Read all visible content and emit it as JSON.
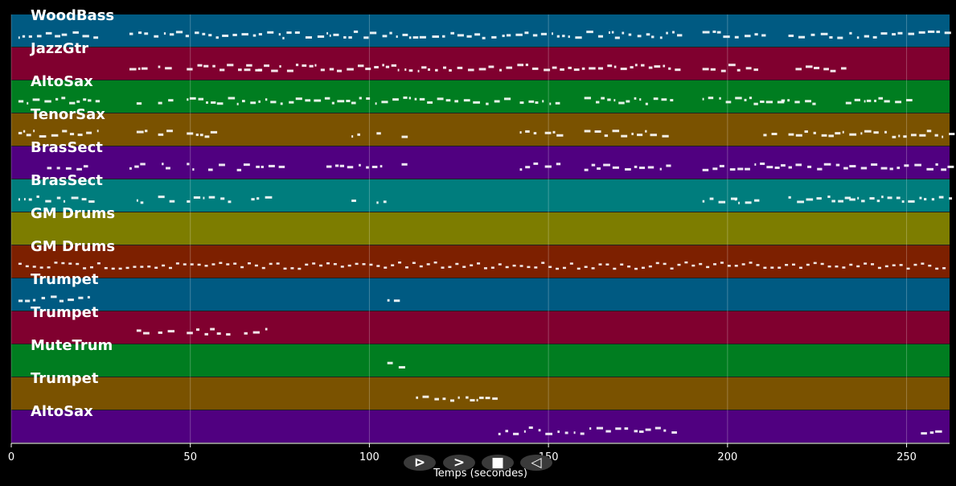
{
  "chart_data": {
    "type": "piano-roll",
    "xlabel": "Temps (secondes)",
    "xlim": [
      0,
      262
    ],
    "xticks": [
      0,
      50,
      100,
      150,
      200,
      250
    ],
    "grid": true,
    "tracks": [
      {
        "name": "WoodBass",
        "color": "#005a82",
        "segments": [
          [
            2,
            25
          ],
          [
            33,
            186
          ],
          [
            193,
            210
          ],
          [
            217,
            233
          ],
          [
            234,
            262
          ]
        ]
      },
      {
        "name": "JazzGtr",
        "color": "#80002f",
        "segments": [
          [
            33,
            38
          ],
          [
            41,
            45
          ],
          [
            49,
            69
          ],
          [
            65,
            186
          ],
          [
            193,
            208
          ],
          [
            219,
            233
          ]
        ]
      },
      {
        "name": "AltoSax",
        "color": "#007d20",
        "segments": [
          [
            2,
            24
          ],
          [
            35,
            38
          ],
          [
            41,
            45
          ],
          [
            49,
            68
          ],
          [
            69,
            138
          ],
          [
            142,
            153
          ],
          [
            160,
            185
          ],
          [
            193,
            215
          ],
          [
            215,
            225
          ],
          [
            233,
            253
          ]
        ]
      },
      {
        "name": "TenorSax",
        "color": "#7a5200",
        "segments": [
          [
            2,
            24
          ],
          [
            35,
            38
          ],
          [
            41,
            45
          ],
          [
            49,
            57
          ],
          [
            95,
            97
          ],
          [
            102,
            104
          ],
          [
            109,
            111
          ],
          [
            142,
            146
          ],
          [
            149,
            153
          ],
          [
            160,
            184
          ],
          [
            210,
            215
          ],
          [
            217,
            233
          ],
          [
            234,
            262
          ]
        ]
      },
      {
        "name": "BrasSect",
        "color": "#500080",
        "segments": [
          [
            10,
            22
          ],
          [
            33,
            38
          ],
          [
            42,
            45
          ],
          [
            49,
            52
          ],
          [
            55,
            61
          ],
          [
            63,
            76
          ],
          [
            88,
            104
          ],
          [
            109,
            112
          ],
          [
            142,
            146
          ],
          [
            149,
            153
          ],
          [
            160,
            185
          ],
          [
            193,
            215
          ],
          [
            217,
            233
          ],
          [
            234,
            262
          ]
        ]
      },
      {
        "name": "BrasSect",
        "color": "#007d7d",
        "segments": [
          [
            2,
            24
          ],
          [
            35,
            38
          ],
          [
            41,
            45
          ],
          [
            49,
            61
          ],
          [
            67,
            73
          ],
          [
            95,
            97
          ],
          [
            102,
            104
          ],
          [
            193,
            202
          ],
          [
            202,
            210
          ],
          [
            217,
            233
          ],
          [
            234,
            262
          ]
        ]
      },
      {
        "name": "GM Drums",
        "color": "#7d7d00",
        "segments": []
      },
      {
        "name": "GM Drums",
        "color": "#7d2000",
        "segments": [
          [
            2,
            262
          ]
        ]
      },
      {
        "name": "Trumpet",
        "color": "#005a82",
        "segments": [
          [
            2,
            23
          ],
          [
            105,
            109
          ]
        ]
      },
      {
        "name": "Trumpet",
        "color": "#80002f",
        "segments": [
          [
            35,
            38
          ],
          [
            41,
            45
          ],
          [
            49,
            62
          ],
          [
            65,
            73
          ]
        ]
      },
      {
        "name": "MuteTrum",
        "color": "#007d20",
        "segments": [
          [
            105,
            109
          ]
        ]
      },
      {
        "name": "Trumpet",
        "color": "#7a5200",
        "segments": [
          [
            113,
            137
          ]
        ]
      },
      {
        "name": "AltoSax",
        "color": "#500080",
        "segments": [
          [
            136,
            185
          ],
          [
            254,
            260
          ]
        ]
      }
    ]
  },
  "controls": [
    {
      "icon": "play-outline-icon",
      "glyph": "⊳"
    },
    {
      "icon": "forward-icon",
      "glyph": ">"
    },
    {
      "icon": "stop-icon",
      "glyph": "■"
    },
    {
      "icon": "back-icon",
      "glyph": "◁"
    }
  ]
}
